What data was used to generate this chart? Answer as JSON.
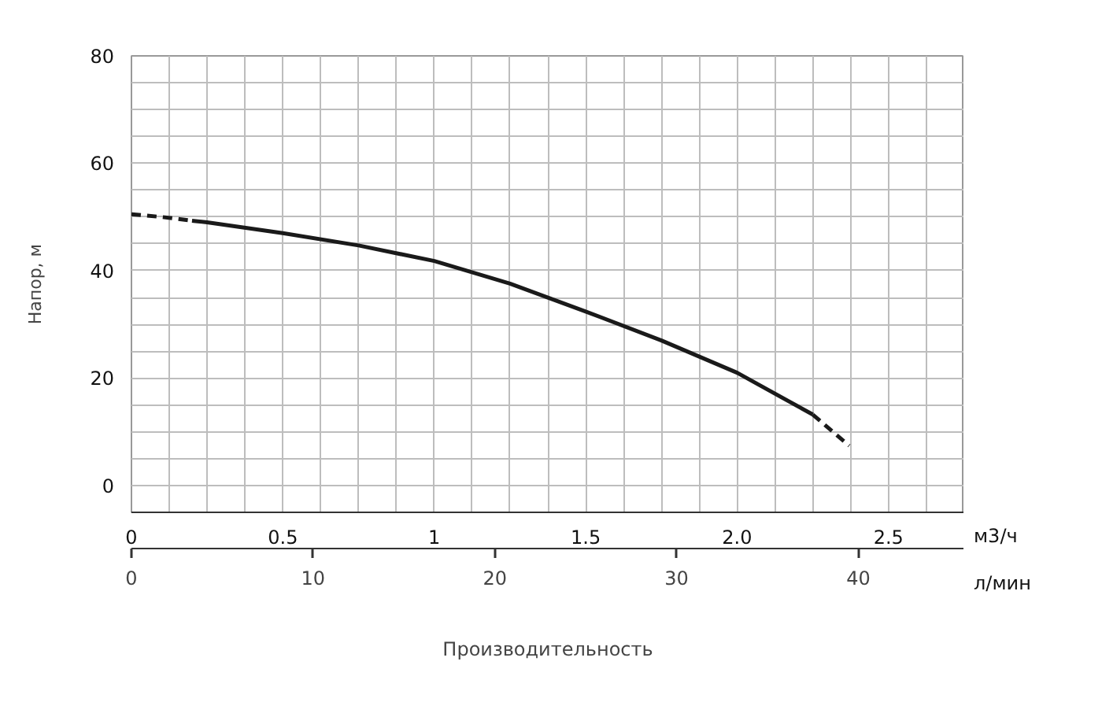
{
  "chart_data": {
    "type": "line",
    "ylabel": "Напор, м",
    "xlabel": "м3/ч",
    "x2label": "л/мин",
    "annotations": [
      "Производительность"
    ],
    "xlim": [
      0,
      2.75
    ],
    "ylim": [
      -5,
      80
    ],
    "x2lim": [
      0,
      45.83
    ],
    "xticks": [
      {
        "value": 0,
        "label": "0"
      },
      {
        "value": 0.125,
        "label": null
      },
      {
        "value": 0.25,
        "label": null
      },
      {
        "value": 0.375,
        "label": null
      },
      {
        "value": 0.5,
        "label": "0.5"
      },
      {
        "value": 0.625,
        "label": null
      },
      {
        "value": 0.75,
        "label": null
      },
      {
        "value": 0.875,
        "label": null
      },
      {
        "value": 1,
        "label": "1"
      },
      {
        "value": 1.125,
        "label": null
      },
      {
        "value": 1.25,
        "label": null
      },
      {
        "value": 1.375,
        "label": null
      },
      {
        "value": 1.5,
        "label": "1.5"
      },
      {
        "value": 1.625,
        "label": null
      },
      {
        "value": 1.75,
        "label": null
      },
      {
        "value": 1.875,
        "label": null
      },
      {
        "value": 2,
        "label": "2.0"
      },
      {
        "value": 2.125,
        "label": null
      },
      {
        "value": 2.25,
        "label": null
      },
      {
        "value": 2.375,
        "label": null
      },
      {
        "value": 2.5,
        "label": "2.5"
      },
      {
        "value": 2.625,
        "label": null
      },
      {
        "value": 2.75,
        "label": null
      }
    ],
    "yticks": [
      {
        "value": -5,
        "label": null
      },
      {
        "value": 0,
        "label": "0"
      },
      {
        "value": 5,
        "label": null
      },
      {
        "value": 10,
        "label": null
      },
      {
        "value": 15,
        "label": null
      },
      {
        "value": 20,
        "label": "20"
      },
      {
        "value": 25,
        "label": null
      },
      {
        "value": 30,
        "label": null
      },
      {
        "value": 35,
        "label": null
      },
      {
        "value": 40,
        "label": "40"
      },
      {
        "value": 45,
        "label": null
      },
      {
        "value": 50,
        "label": null
      },
      {
        "value": 55,
        "label": null
      },
      {
        "value": 60,
        "label": "60"
      },
      {
        "value": 65,
        "label": null
      },
      {
        "value": 70,
        "label": null
      },
      {
        "value": 75,
        "label": null
      },
      {
        "value": 80,
        "label": "80"
      }
    ],
    "x2ticks": [
      0,
      10,
      20,
      30,
      40
    ],
    "grid": true,
    "series": [
      {
        "color": "#1a1a1a",
        "line_style": "dashed",
        "x": [
          0,
          0.1,
          0.2
        ],
        "values": [
          50.5,
          50,
          49.3
        ]
      },
      {
        "color": "#1a1a1a",
        "line_style": "solid",
        "x": [
          0.2,
          0.25,
          0.5,
          0.75,
          1,
          1.25,
          1.5,
          1.75,
          2,
          2.25
        ],
        "values": [
          49.3,
          49,
          47,
          44.7,
          41.8,
          37.6,
          32.4,
          27,
          21,
          13.2
        ]
      },
      {
        "color": "#1a1a1a",
        "line_style": "dashed",
        "x": [
          2.25,
          2.37
        ],
        "values": [
          13.2,
          7.4
        ]
      }
    ]
  }
}
